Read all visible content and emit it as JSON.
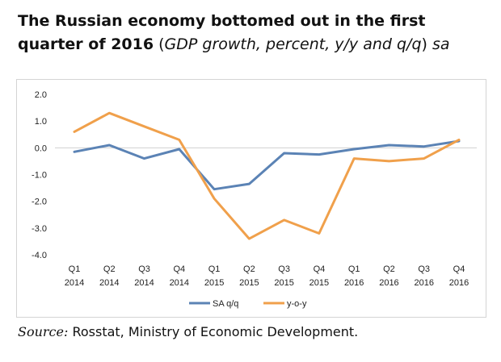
{
  "title": {
    "bold_line1": "The Russian economy bottomed out in the first",
    "bold_line2": "quarter of 2016",
    "paren_open": " (",
    "italic_part": "GDP growth, percent, y/y and q/q",
    "paren_close": ")",
    "suffix": " sa"
  },
  "source": {
    "label": "Source:",
    "text": " Rosstat, Ministry of Economic Development."
  },
  "chart_data": {
    "type": "line",
    "categories": [
      [
        "Q1",
        "2014"
      ],
      [
        "Q2",
        "2014"
      ],
      [
        "Q3",
        "2014"
      ],
      [
        "Q4",
        "2014"
      ],
      [
        "Q1",
        "2015"
      ],
      [
        "Q2",
        "2015"
      ],
      [
        "Q3",
        "2015"
      ],
      [
        "Q4",
        "2015"
      ],
      [
        "Q1",
        "2016"
      ],
      [
        "Q2",
        "2016"
      ],
      [
        "Q3",
        "2016"
      ],
      [
        "Q4",
        "2016"
      ]
    ],
    "ylim": [
      -4.0,
      2.0
    ],
    "yticks": [
      "2.0",
      "1.0",
      "0.0",
      "-1.0",
      "-2.0",
      "-3.0",
      "-4.0"
    ],
    "grid": false,
    "legend": "bottom",
    "series": [
      {
        "name": "SA q/q",
        "color": "#5b83b5",
        "values": [
          -0.15,
          0.1,
          -0.4,
          -0.05,
          -1.55,
          -1.35,
          -0.2,
          -0.25,
          -0.05,
          0.1,
          0.05,
          0.25
        ]
      },
      {
        "name": "y-o-y",
        "color": "#f0a04b",
        "values": [
          0.6,
          1.3,
          0.8,
          0.3,
          -1.9,
          -3.4,
          -2.7,
          -3.2,
          -0.4,
          -0.5,
          -0.4,
          0.3
        ]
      }
    ]
  }
}
